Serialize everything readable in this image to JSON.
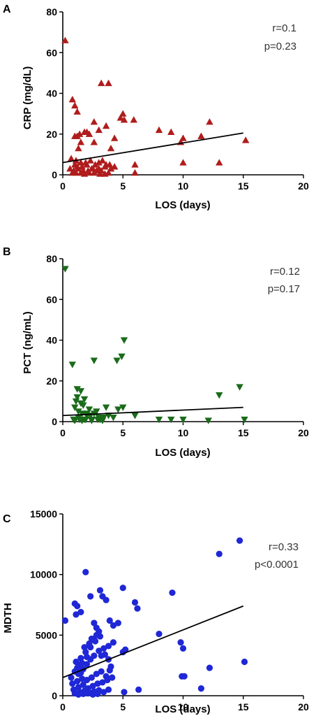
{
  "chart_data": [
    {
      "panel": "A",
      "type": "scatter",
      "xlabel": "LOS (days)",
      "ylabel": "CRP (mg/dL)",
      "xlim": [
        0,
        20
      ],
      "ylim": [
        0,
        80
      ],
      "xticks": [
        "0",
        "5",
        "10",
        "15",
        "20"
      ],
      "yticks": [
        "0",
        "20",
        "40",
        "60",
        "80"
      ],
      "xtick_values": [
        0,
        5,
        10,
        15,
        20
      ],
      "ytick_values": [
        0,
        20,
        40,
        60,
        80
      ],
      "annotations": [
        "r=0.1",
        "p=0.23"
      ],
      "marker": "triangle-up",
      "color": "#b01c1c",
      "fit_line": {
        "x": [
          0,
          15
        ],
        "y": [
          6,
          20.5
        ]
      },
      "x": [
        0.2,
        0.8,
        1,
        1.2,
        1.4,
        1,
        0.7,
        1.1,
        1.5,
        1.9,
        2.3,
        2.7,
        3,
        3.3,
        3.6,
        3.9,
        4.3,
        1,
        1.2,
        1.6,
        2,
        2.5,
        3,
        3.5,
        4,
        0.6,
        0.9,
        1.3,
        1.7,
        2.1,
        2.4,
        2.8,
        3.2,
        3.8,
        0.8,
        1.1,
        1.5,
        1.8,
        2.2,
        2.6,
        3.1,
        3.5,
        1.2,
        1.5,
        2.2,
        2.6,
        1.3,
        2,
        3,
        3.6,
        1.8,
        2.6,
        4,
        4.3,
        3.2,
        3.8,
        5,
        4.8,
        5.1,
        5.9,
        6,
        8,
        9,
        10,
        9.8,
        11.5,
        12.2,
        13,
        15.2,
        10,
        6
      ],
      "y": [
        66,
        37,
        34,
        31,
        20,
        19,
        8,
        7,
        6,
        6,
        7,
        5,
        6,
        7,
        5,
        5,
        4,
        5,
        4,
        4,
        5,
        3,
        3,
        4,
        3,
        3,
        2,
        3,
        2,
        2,
        3,
        2,
        2,
        1,
        1,
        1,
        1,
        0.5,
        1,
        1,
        0.5,
        0.5,
        19,
        16,
        20,
        26,
        13,
        21,
        22,
        24,
        21,
        16,
        13,
        18,
        45,
        45,
        30,
        28,
        27,
        27,
        5,
        22,
        21,
        18,
        16,
        19,
        26,
        6,
        17,
        6,
        1
      ],
      "r": 0.1,
      "p": 0.23
    },
    {
      "panel": "B",
      "type": "scatter",
      "xlabel": "LOS (days)",
      "ylabel": "PCT (ng/mL)",
      "xlim": [
        0,
        20
      ],
      "ylim": [
        0,
        80
      ],
      "xticks": [
        "0",
        "5",
        "10",
        "15",
        "20"
      ],
      "yticks": [
        "0",
        "20",
        "40",
        "60",
        "80"
      ],
      "xtick_values": [
        0,
        5,
        10,
        15,
        20
      ],
      "ytick_values": [
        0,
        20,
        40,
        60,
        80
      ],
      "annotations": [
        "r=0.12",
        "p=0.17"
      ],
      "marker": "triangle-down",
      "color": "#1a6b1a",
      "fit_line": {
        "x": [
          0,
          15
        ],
        "y": [
          3,
          7
        ]
      },
      "x": [
        0.2,
        0.8,
        1.2,
        1.5,
        1.8,
        1,
        1.3,
        1.6,
        2,
        2.3,
        2.6,
        3,
        3.4,
        3.8,
        4.2,
        0.9,
        1.4,
        1.9,
        2.4,
        2.9,
        3.3,
        1.1,
        1.7,
        2.2,
        2.8,
        3.6,
        1.2,
        1.5,
        2,
        2.6,
        4.5,
        4.9,
        5.1,
        4.6,
        5,
        6,
        8,
        9,
        10,
        12.1,
        13,
        14.7,
        15.1,
        1.3,
        1.8,
        2.4,
        3.1,
        1,
        1.6
      ],
      "y": [
        75,
        28,
        16,
        15,
        11,
        7,
        5,
        4,
        3,
        3,
        4,
        2,
        2,
        3,
        2,
        1,
        1,
        1,
        1,
        1,
        0.5,
        10,
        8,
        6,
        5,
        7,
        12,
        9,
        4,
        30,
        30,
        32,
        40,
        6,
        7,
        3,
        1,
        1,
        1,
        0.5,
        13,
        17,
        1,
        2,
        1,
        0.5,
        1,
        0.5,
        0.5
      ],
      "r": 0.12,
      "p": 0.17
    },
    {
      "panel": "C",
      "type": "scatter",
      "xlabel": "LOS (days)",
      "ylabel": "MDTH",
      "xlim": [
        0,
        20
      ],
      "ylim": [
        0,
        15000
      ],
      "xticks": [
        "0",
        "5",
        "10",
        "15",
        "20"
      ],
      "yticks": [
        "0",
        "5000",
        "10000",
        "15000"
      ],
      "xtick_values": [
        0,
        5,
        10,
        15,
        20
      ],
      "ytick_values": [
        0,
        5000,
        10000,
        15000
      ],
      "annotations": [
        "r=0.33",
        "p<0.0001"
      ],
      "marker": "circle",
      "color": "#1f27d6",
      "fit_line": {
        "x": [
          0,
          15
        ],
        "y": [
          1500,
          7400
        ]
      },
      "x": [
        0.2,
        1,
        1.2,
        1.5,
        1.1,
        1.4,
        1.9,
        2.3,
        2.6,
        2.8,
        3.1,
        3.3,
        3.6,
        3.9,
        4.2,
        4.6,
        5,
        0.7,
        1,
        1.3,
        1.7,
        2,
        2.3,
        2.6,
        3,
        3.4,
        3.8,
        4.2,
        0.8,
        1.2,
        1.6,
        2,
        2.4,
        2.8,
        3.2,
        3.6,
        4,
        0.9,
        1.3,
        1.7,
        2.1,
        2.5,
        2.9,
        3.3,
        3.7,
        4.1,
        1,
        1.4,
        1.8,
        2.2,
        2.6,
        3,
        3.4,
        3.8,
        1.1,
        1.5,
        1.9,
        2.3,
        2.7,
        3.1,
        3.5,
        3.9,
        1.2,
        1.6,
        2,
        2.4,
        2.8,
        3.2,
        1.3,
        1.7,
        2.1,
        2.5,
        2.9,
        1.8,
        2.2,
        2.6,
        3,
        5,
        5.2,
        6,
        6.2,
        5.1,
        6.3,
        8,
        9.1,
        9.8,
        10,
        9.9,
        11.5,
        12.2,
        13,
        14.7,
        15.1,
        10.1,
        3.8,
        1.5
      ],
      "y": [
        6200,
        7600,
        7400,
        6900,
        6700,
        2500,
        10200,
        8200,
        6000,
        5600,
        8700,
        8200,
        7900,
        6200,
        5800,
        6000,
        8900,
        1500,
        2000,
        1800,
        2200,
        2600,
        3000,
        3300,
        3700,
        3900,
        4100,
        4400,
        1000,
        1200,
        1400,
        1300,
        1500,
        1800,
        2000,
        1600,
        2400,
        500,
        700,
        900,
        600,
        800,
        1000,
        1100,
        1300,
        1500,
        200,
        300,
        400,
        250,
        350,
        450,
        300,
        500,
        2800,
        3100,
        3600,
        4000,
        4500,
        4900,
        3400,
        2100,
        2300,
        2700,
        3200,
        4700,
        5000,
        3300,
        100,
        150,
        200,
        100,
        150,
        4000,
        4300,
        4600,
        5300,
        3600,
        3800,
        7700,
        7200,
        300,
        500,
        5100,
        8500,
        4400,
        3900,
        1600,
        600,
        2300,
        11700,
        12800,
        2800,
        1600,
        3000,
        1900
      ],
      "r": 0.33,
      "p": "<0.0001"
    }
  ]
}
